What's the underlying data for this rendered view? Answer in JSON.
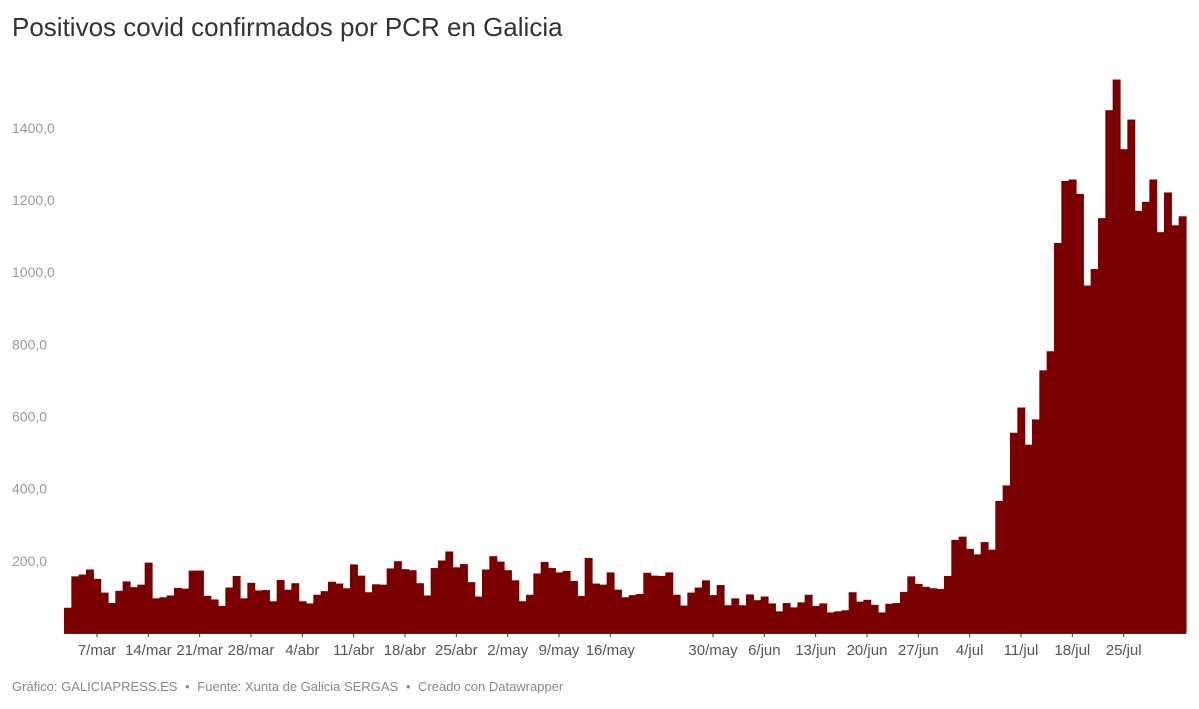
{
  "chart_data": {
    "type": "bar",
    "title": "Positivos covid confirmados por PCR en Galicia",
    "xlabel": "",
    "ylabel": "",
    "ylim": [
      0,
      1540
    ],
    "yticks": [
      {
        "value": 200,
        "label": "200,0"
      },
      {
        "value": 400,
        "label": "400,0"
      },
      {
        "value": 600,
        "label": "600,0"
      },
      {
        "value": 800,
        "label": "800,0"
      },
      {
        "value": 1000,
        "label": "1000,0"
      },
      {
        "value": 1200,
        "label": "1200,0"
      },
      {
        "value": 1400,
        "label": "1400,0"
      }
    ],
    "xticks": [
      {
        "label": "7/mar",
        "index": 4
      },
      {
        "label": "14/mar",
        "index": 11
      },
      {
        "label": "21/mar",
        "index": 18
      },
      {
        "label": "28/mar",
        "index": 25
      },
      {
        "label": "4/abr",
        "index": 32
      },
      {
        "label": "11/abr",
        "index": 39
      },
      {
        "label": "18/abr",
        "index": 46
      },
      {
        "label": "25/abr",
        "index": 53
      },
      {
        "label": "2/may",
        "index": 60
      },
      {
        "label": "9/may",
        "index": 67
      },
      {
        "label": "16/may",
        "index": 74
      },
      {
        "label": "30/may",
        "index": 88
      },
      {
        "label": "6/jun",
        "index": 95
      },
      {
        "label": "13/jun",
        "index": 102
      },
      {
        "label": "20/jun",
        "index": 109
      },
      {
        "label": "27/jun",
        "index": 116
      },
      {
        "label": "4/jul",
        "index": 123
      },
      {
        "label": "11/jul",
        "index": 130
      },
      {
        "label": "18/jul",
        "index": 137
      },
      {
        "label": "25/jul",
        "index": 144
      }
    ],
    "grid": false,
    "color": "#7a0000",
    "series": [
      {
        "values": [
          70,
          157,
          162,
          176,
          150,
          112,
          83,
          117,
          143,
          127,
          134,
          195,
          96,
          99,
          104,
          125,
          123,
          173,
          173,
          103,
          93,
          75,
          126,
          158,
          96,
          139,
          118,
          119,
          88,
          147,
          120,
          138,
          88,
          82,
          106,
          116,
          142,
          137,
          124,
          190,
          159,
          113,
          135,
          134,
          179,
          199,
          177,
          174,
          138,
          104,
          180,
          201,
          226,
          182,
          191,
          141,
          101,
          176,
          213,
          198,
          174,
          146,
          88,
          106,
          165,
          197,
          180,
          168,
          172,
          144,
          103,
          208,
          137,
          134,
          168,
          120,
          99,
          105,
          108,
          167,
          159,
          158,
          168,
          106,
          76,
          112,
          126,
          146,
          105,
          133,
          77,
          96,
          77,
          107,
          91,
          101,
          82,
          60,
          83,
          71,
          85,
          106,
          75,
          82,
          57,
          60,
          63,
          113,
          87,
          92,
          78,
          57,
          81,
          83,
          114,
          157,
          136,
          128,
          124,
          122,
          158,
          258,
          267,
          233,
          218,
          252,
          231,
          366,
          409,
          555,
          625,
          522,
          592,
          728,
          781,
          1081,
          1253,
          1257,
          1217,
          963,
          1009,
          1150,
          1449,
          1534,
          1341,
          1423,
          1170,
          1195,
          1257,
          1111,
          1221,
          1130,
          1155
        ]
      }
    ]
  },
  "footer": {
    "prefix": "Gráfico:",
    "source_org": "GALICIAPRESS.ES",
    "bullet1": "•",
    "source_label": "Fuente:",
    "source": "Xunta de Galicia SERGAS",
    "bullet2": "•",
    "credit": "Creado con Datawrapper"
  }
}
